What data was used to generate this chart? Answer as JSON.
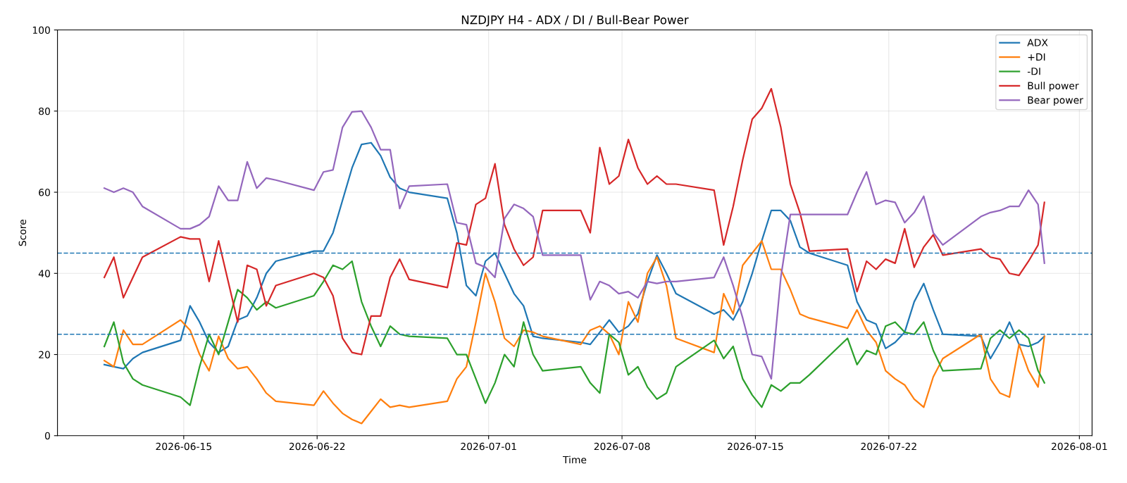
{
  "chart_data": {
    "type": "line",
    "title": "NZDJPY H4 - ADX / DI / Bull-Bear Power",
    "xlabel": "Time",
    "ylabel": "Score",
    "x": [
      "2026-06-10T20:00",
      "2026-06-11T08:00",
      "2026-06-11T20:00",
      "2026-06-12T08:00",
      "2026-06-12T20:00",
      "2026-06-14T20:00",
      "2026-06-15T08:00",
      "2026-06-15T20:00",
      "2026-06-16T08:00",
      "2026-06-16T20:00",
      "2026-06-17T08:00",
      "2026-06-17T20:00",
      "2026-06-18T08:00",
      "2026-06-18T20:00",
      "2026-06-19T08:00",
      "2026-06-19T20:00",
      "2026-06-21T20:00",
      "2026-06-22T08:00",
      "2026-06-22T20:00",
      "2026-06-23T08:00",
      "2026-06-23T20:00",
      "2026-06-24T08:00",
      "2026-06-24T20:00",
      "2026-06-25T08:00",
      "2026-06-25T20:00",
      "2026-06-26T08:00",
      "2026-06-26T20:00",
      "2026-06-28T20:00",
      "2026-06-29T08:00",
      "2026-06-29T20:00",
      "2026-06-30T08:00",
      "2026-06-30T20:00",
      "2026-07-01T08:00",
      "2026-07-01T20:00",
      "2026-07-02T08:00",
      "2026-07-02T20:00",
      "2026-07-03T08:00",
      "2026-07-03T20:00",
      "2026-07-05T20:00",
      "2026-07-06T08:00",
      "2026-07-06T20:00",
      "2026-07-07T08:00",
      "2026-07-07T20:00",
      "2026-07-08T08:00",
      "2026-07-08T20:00",
      "2026-07-09T08:00",
      "2026-07-09T20:00",
      "2026-07-10T08:00",
      "2026-07-10T20:00",
      "2026-07-12T20:00",
      "2026-07-13T08:00",
      "2026-07-13T20:00",
      "2026-07-14T08:00",
      "2026-07-14T20:00",
      "2026-07-15T08:00",
      "2026-07-15T20:00",
      "2026-07-16T08:00",
      "2026-07-16T20:00",
      "2026-07-17T08:00",
      "2026-07-17T20:00",
      "2026-07-19T20:00",
      "2026-07-20T08:00",
      "2026-07-20T20:00",
      "2026-07-21T08:00",
      "2026-07-21T20:00",
      "2026-07-22T08:00",
      "2026-07-22T20:00",
      "2026-07-23T08:00",
      "2026-07-23T20:00",
      "2026-07-24T08:00",
      "2026-07-24T20:00",
      "2026-07-26T20:00",
      "2026-07-27T08:00",
      "2026-07-27T20:00",
      "2026-07-28T08:00",
      "2026-07-28T20:00",
      "2026-07-29T08:00",
      "2026-07-29T20:00",
      "2026-07-30T04:00"
    ],
    "series": [
      {
        "name": "ADX",
        "color": "#1f77b4",
        "values": [
          17.5,
          17,
          16.5,
          19,
          20.5,
          23.5,
          32,
          28,
          23,
          20.5,
          22,
          28.5,
          29.5,
          34,
          40,
          43,
          45.5,
          45.5,
          50,
          58,
          66,
          71.8,
          72.2,
          69,
          63.7,
          61,
          60,
          58.5,
          50,
          37,
          34.5,
          43,
          45,
          40,
          35,
          32,
          24.5,
          24,
          23,
          22.5,
          25.5,
          28.5,
          25.5,
          27,
          30,
          38,
          44.5,
          40,
          35,
          30,
          31,
          28.5,
          33,
          40,
          48,
          55.5,
          55.5,
          53,
          46.5,
          45,
          42,
          33,
          28.5,
          27.5,
          21.5,
          23,
          25.5,
          33,
          37.5,
          31,
          25,
          24.5,
          19,
          23,
          28,
          22.5,
          22,
          23,
          24.5
        ]
      },
      {
        "name": "+DI",
        "color": "#ff7f0e",
        "values": [
          18.5,
          17,
          26,
          22.5,
          22.5,
          28.5,
          26,
          20,
          16,
          24.5,
          19,
          16.5,
          17,
          14,
          10.5,
          8.5,
          7.5,
          11,
          8,
          5.5,
          4,
          3,
          6,
          9,
          7,
          7.5,
          7,
          8.5,
          14,
          17,
          28,
          40,
          33,
          24,
          22,
          26,
          25.5,
          24.5,
          22.5,
          26,
          27,
          25,
          20,
          33,
          28,
          40,
          44,
          37,
          24,
          20.5,
          35,
          30,
          42,
          45,
          48,
          41,
          41,
          36,
          30,
          29,
          26.5,
          31,
          26,
          23,
          16,
          14,
          12.5,
          9,
          7,
          14.5,
          19,
          25,
          14,
          10.5,
          9.5,
          22.5,
          16,
          12,
          24.5
        ]
      },
      {
        "name": "-DI",
        "color": "#2ca02c",
        "values": [
          22,
          28,
          18,
          14,
          12.5,
          9.5,
          7.5,
          17,
          25,
          20,
          28,
          36,
          34,
          31,
          33,
          31.5,
          34.5,
          38,
          42,
          41,
          43,
          33,
          27,
          22,
          27,
          25,
          24.5,
          24,
          20,
          20,
          14,
          8,
          13,
          20,
          17,
          28,
          20,
          16,
          17,
          13,
          10.5,
          25,
          23,
          15,
          17,
          12,
          9,
          10.5,
          17,
          23.5,
          19,
          22,
          14,
          10,
          7,
          12.5,
          11,
          13,
          13,
          15,
          24,
          17.5,
          21,
          20,
          27,
          28,
          25.5,
          25,
          28,
          21,
          16,
          16.5,
          24,
          26,
          24,
          26,
          24,
          16,
          13
        ]
      },
      {
        "name": "Bull power",
        "color": "#d62728",
        "values": [
          39,
          44,
          34,
          39,
          44,
          49,
          48.5,
          48.5,
          38,
          48,
          38,
          28,
          42,
          41,
          32,
          37,
          40,
          39,
          34.5,
          24,
          20.5,
          20,
          29.5,
          29.5,
          39,
          43.5,
          38.5,
          36.5,
          47.5,
          47,
          57,
          58.5,
          67,
          52,
          46,
          42,
          44,
          55.5,
          55.5,
          50,
          71,
          62,
          64,
          73,
          66,
          62,
          64,
          62,
          62,
          60.5,
          47,
          56.5,
          68,
          78,
          80.7,
          85.5,
          76,
          62,
          55,
          45.5,
          46,
          35.5,
          43,
          41,
          43.5,
          42.5,
          51,
          41.5,
          46.5,
          49.5,
          44.5,
          46,
          44,
          43.5,
          40,
          39.5,
          43,
          47,
          57.5
        ]
      },
      {
        "name": "Bear power",
        "color": "#9467bd",
        "values": [
          61,
          60,
          61,
          60,
          56.5,
          51,
          51,
          52,
          54,
          61.5,
          58,
          58,
          67.5,
          61,
          63.5,
          63,
          60.5,
          65,
          65.5,
          76,
          79.8,
          80,
          76,
          70.5,
          70.5,
          56,
          61.5,
          62,
          52.5,
          52,
          42.5,
          41.5,
          39,
          53.5,
          57,
          56,
          54,
          44.5,
          44.5,
          33.5,
          38,
          37,
          35,
          35.5,
          34,
          38,
          37.5,
          38,
          38,
          39,
          44,
          37,
          29,
          20,
          19.5,
          14,
          39,
          54.5,
          54.5,
          54.5,
          54.5,
          60,
          65,
          57,
          58,
          57.5,
          52.5,
          55,
          59,
          50,
          47,
          54,
          55,
          55.5,
          56.5,
          56.5,
          60.5,
          57,
          42.5
        ]
      }
    ],
    "ref_lines": [
      {
        "axis": "y",
        "value": 45,
        "color": "#1f77b4",
        "line_style": "dashed"
      },
      {
        "axis": "y",
        "value": 25,
        "color": "#1f77b4",
        "line_style": "dashed"
      }
    ],
    "xlim": [
      "2026-06-08T09:00",
      "2026-08-01T16:00"
    ],
    "xticks": [
      "2026-06-15",
      "2026-06-22",
      "2026-07-01",
      "2026-07-08",
      "2026-07-15",
      "2026-07-22",
      "2026-08-01"
    ],
    "ylim": [
      0,
      100
    ],
    "yticks": [
      0,
      20,
      40,
      60,
      80,
      100
    ],
    "grid": true,
    "legend": "top right",
    "line_style": "solid",
    "marker": "none"
  }
}
